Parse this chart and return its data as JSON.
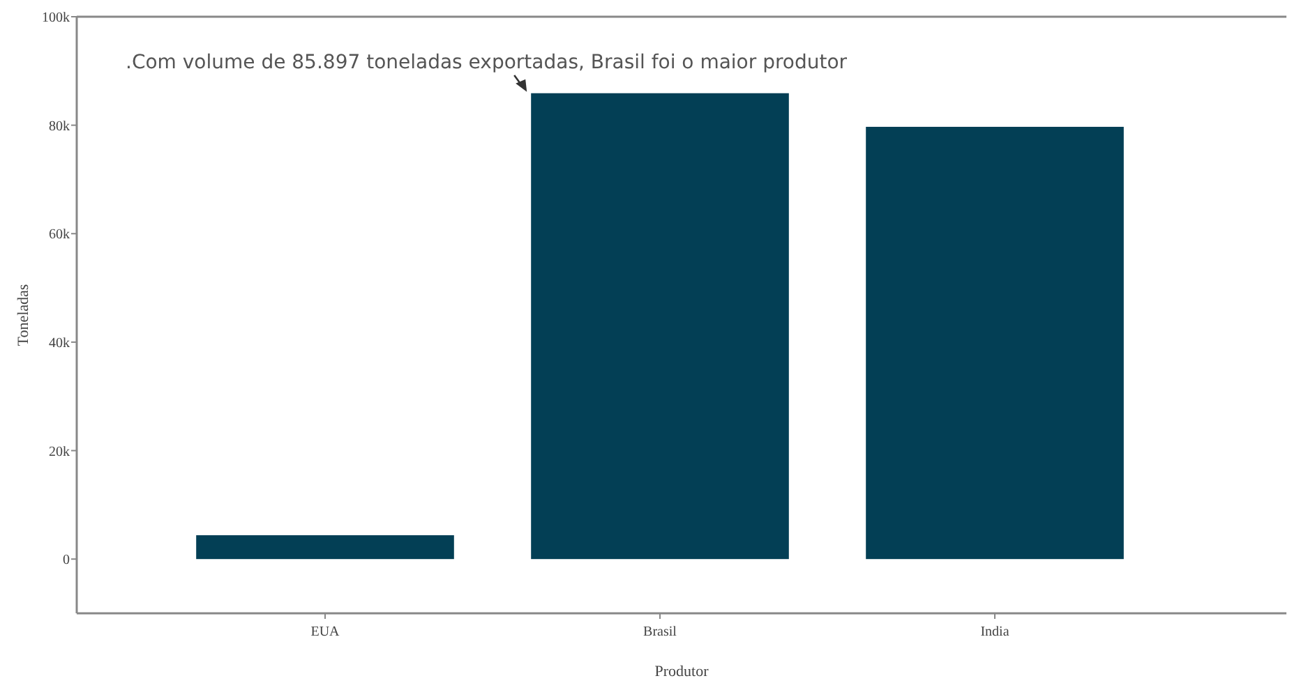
{
  "chart_data": {
    "type": "bar",
    "xlabel": "Produtor",
    "ylabel": "Toneladas",
    "categories": [
      "EUA",
      "Brasil",
      "India"
    ],
    "values": [
      4400,
      85897,
      79700
    ],
    "color": "#033f55",
    "ylim": [
      -10000,
      100000
    ],
    "yticks": [
      {
        "value": 0,
        "label": "0"
      },
      {
        "value": 20000,
        "label": "20k"
      },
      {
        "value": 40000,
        "label": "40k"
      },
      {
        "value": 60000,
        "label": "60k"
      },
      {
        "value": 80000,
        "label": "80k"
      },
      {
        "value": 100000,
        "label": "100k"
      }
    ],
    "annotations": [
      {
        "text": ".Com volume de 85.897 toneladas exportadas, Brasil foi o maior produtor",
        "x": "Brasil",
        "y": 85897
      }
    ],
    "grid": false
  }
}
